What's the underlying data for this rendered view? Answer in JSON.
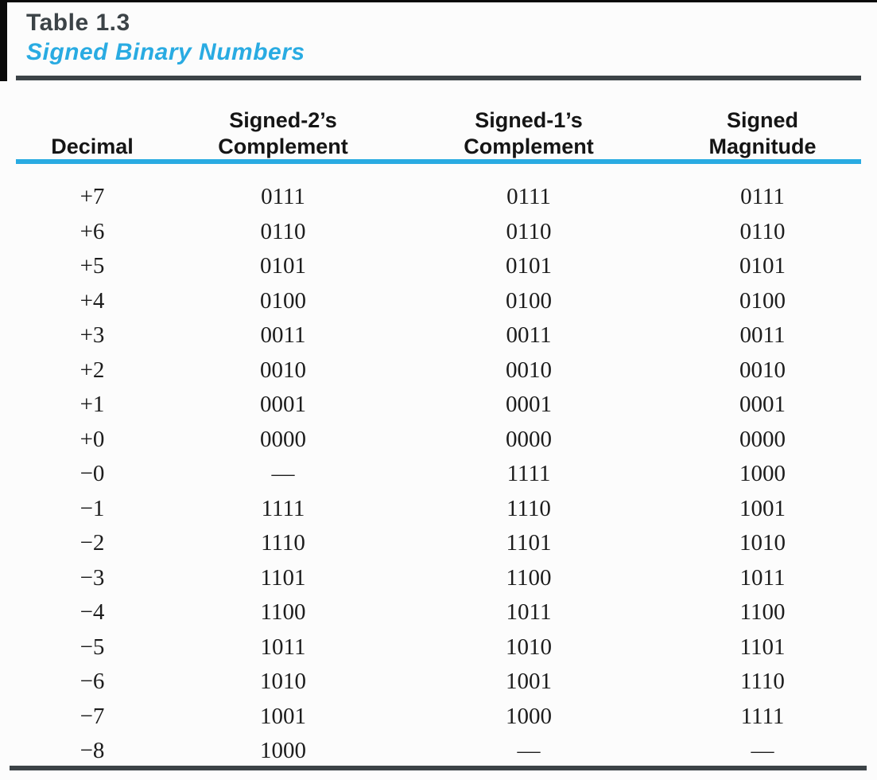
{
  "caption": {
    "label": "Table 1.3",
    "title": "Signed Binary Numbers"
  },
  "colors": {
    "accent_cyan": "#29abe2",
    "heading_dark": "#3c4347",
    "data_text": "#1c1c1c",
    "page_background": "#fcfcfc"
  },
  "table": {
    "column_headers": [
      {
        "line1": "",
        "line2": "Decimal"
      },
      {
        "line1": "Signed-2’s",
        "line2": "Complement"
      },
      {
        "line1": "Signed-1’s",
        "line2": "Complement"
      },
      {
        "line1": "Signed",
        "line2": "Magnitude"
      }
    ],
    "rows": [
      [
        "+7",
        "0111",
        "0111",
        "0111"
      ],
      [
        "+6",
        "0110",
        "0110",
        "0110"
      ],
      [
        "+5",
        "0101",
        "0101",
        "0101"
      ],
      [
        "+4",
        "0100",
        "0100",
        "0100"
      ],
      [
        "+3",
        "0011",
        "0011",
        "0011"
      ],
      [
        "+2",
        "0010",
        "0010",
        "0010"
      ],
      [
        "+1",
        "0001",
        "0001",
        "0001"
      ],
      [
        "+0",
        "0000",
        "0000",
        "0000"
      ],
      [
        "−0",
        "—",
        "1111",
        "1000"
      ],
      [
        "−1",
        "1111",
        "1110",
        "1001"
      ],
      [
        "−2",
        "1110",
        "1101",
        "1010"
      ],
      [
        "−3",
        "1101",
        "1100",
        "1011"
      ],
      [
        "−4",
        "1100",
        "1011",
        "1100"
      ],
      [
        "−5",
        "1011",
        "1010",
        "1101"
      ],
      [
        "−6",
        "1010",
        "1001",
        "1110"
      ],
      [
        "−7",
        "1001",
        "1000",
        "1111"
      ],
      [
        "−8",
        "1000",
        "—",
        "—"
      ]
    ]
  }
}
